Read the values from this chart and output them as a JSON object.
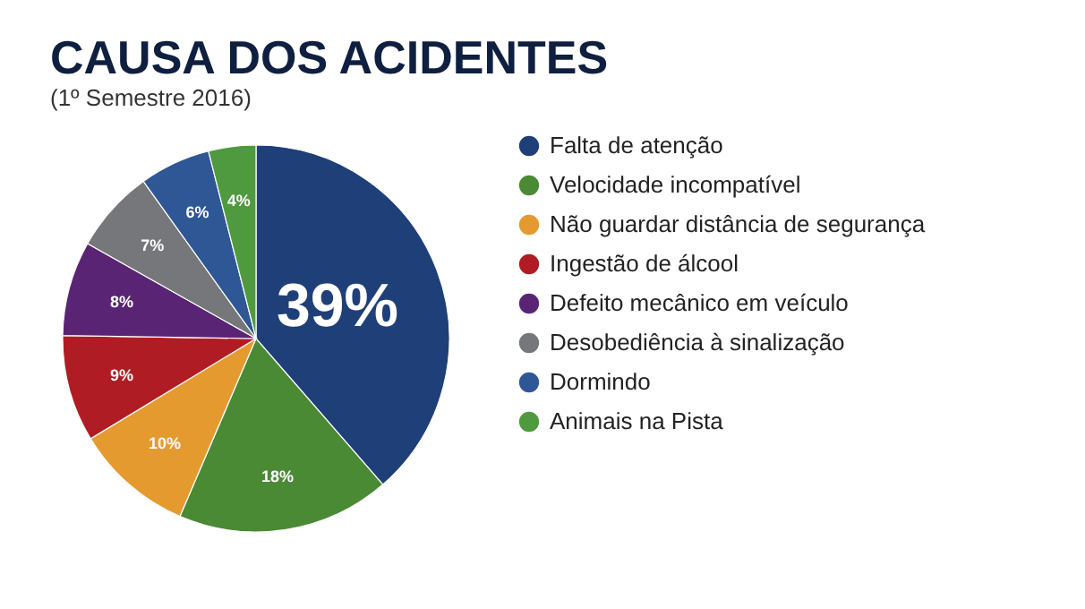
{
  "chart_data": {
    "type": "pie",
    "title": "CAUSA DOS ACIDENTES",
    "subtitle": "(1º Semestre 2016)",
    "categories": [
      "Falta de atenção",
      "Velocidade incompatível",
      "Não guardar distância de segurança",
      "Ingestão de álcool",
      "Defeito mecânico em veículo",
      "Desobediência à sinalização",
      "Dormindo",
      "Animais na Pista"
    ],
    "values": [
      39,
      18,
      10,
      9,
      8,
      7,
      6,
      4
    ],
    "colors": [
      "#1f3f79",
      "#4a8a35",
      "#e59a2f",
      "#b01c24",
      "#5a2474",
      "#76777a",
      "#2f5795",
      "#4f9a3f"
    ],
    "value_labels": [
      "39%",
      "18%",
      "10%",
      "9%",
      "8%",
      "7%",
      "6%",
      "4%"
    ],
    "legend": "right"
  }
}
